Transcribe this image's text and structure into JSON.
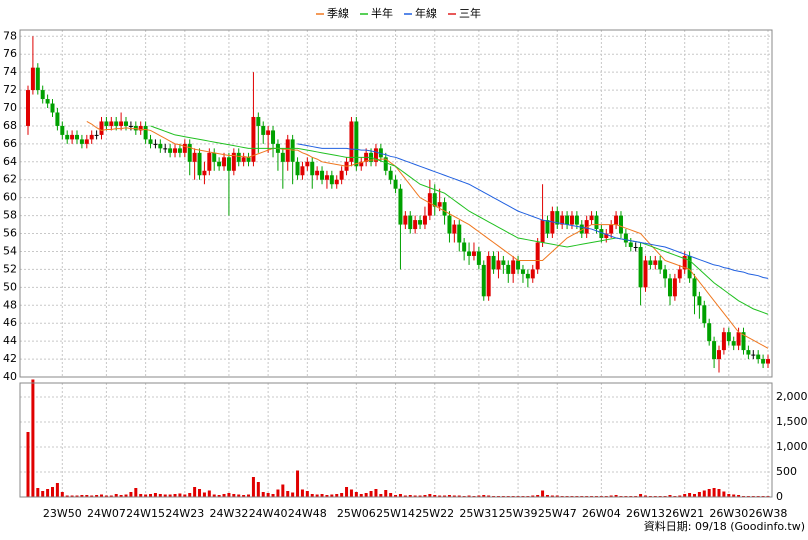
{
  "chart_data": {
    "type": "candlestick",
    "legend": "top",
    "up_color": "#e00000",
    "down_color": "#00a000",
    "flat_color": "#000000",
    "ylim": [
      40,
      78.7
    ],
    "yticks": [
      40,
      42,
      44,
      46,
      48,
      50,
      52,
      54,
      56,
      58,
      60,
      62,
      64,
      66,
      68,
      70,
      72,
      74,
      76,
      78
    ],
    "grid": true,
    "categories": [
      null,
      null,
      null,
      null,
      null,
      null,
      null,
      "23W50",
      null,
      null,
      null,
      null,
      null,
      null,
      null,
      null,
      "24W07",
      null,
      null,
      null,
      null,
      null,
      null,
      null,
      "24W15",
      null,
      null,
      null,
      null,
      null,
      null,
      null,
      "24W23",
      null,
      null,
      null,
      null,
      null,
      null,
      null,
      null,
      "24W32",
      null,
      null,
      null,
      null,
      null,
      null,
      null,
      "24W40",
      null,
      null,
      null,
      null,
      null,
      null,
      null,
      "24W48",
      null,
      null,
      null,
      null,
      null,
      null,
      null,
      null,
      null,
      "25W06",
      null,
      null,
      null,
      null,
      null,
      null,
      null,
      "25W14",
      null,
      null,
      null,
      null,
      null,
      null,
      null,
      "25W22",
      null,
      null,
      null,
      null,
      null,
      null,
      null,
      null,
      "25W31",
      null,
      null,
      null,
      null,
      null,
      null,
      null,
      "25W39",
      null,
      null,
      null,
      null,
      null,
      null,
      null,
      "25W47",
      null,
      null,
      null,
      null,
      null,
      null,
      null,
      null,
      "26W04",
      null,
      null,
      null,
      null,
      null,
      null,
      null,
      null,
      "26W13",
      null,
      null,
      null,
      null,
      null,
      null,
      null,
      "26W21",
      null,
      null,
      null,
      null,
      null,
      null,
      null,
      null,
      "26W30",
      null,
      null,
      null,
      null,
      null,
      null,
      null,
      "26W38"
    ],
    "open": [
      68,
      72,
      74.5,
      72,
      71,
      70.5,
      69.5,
      68,
      67,
      66.5,
      67,
      66.5,
      66,
      66.5,
      67,
      67,
      68.5,
      68,
      68.5,
      68,
      68.5,
      68,
      68,
      67.5,
      68,
      66.5,
      66,
      66,
      65.5,
      65.5,
      65,
      65.5,
      65,
      66,
      64,
      65,
      62.5,
      63,
      65,
      64,
      63.5,
      64.5,
      63,
      65,
      64,
      64.5,
      64,
      69,
      68,
      67,
      67.5,
      66,
      65,
      64,
      66.5,
      64,
      62.5,
      63.5,
      64,
      62.5,
      63,
      62,
      62.5,
      61.5,
      62,
      63,
      64,
      68.5,
      63.5,
      64,
      65,
      64,
      65.5,
      64.5,
      63,
      62,
      61,
      57,
      58,
      56.5,
      57.5,
      57,
      58,
      60.5,
      59,
      59.5,
      58,
      56,
      57,
      55,
      54,
      53.5,
      54,
      52.5,
      49,
      53.5,
      52,
      53,
      52.5,
      51.5,
      53,
      52,
      51.5,
      51,
      52,
      55,
      57.5,
      56,
      58.5,
      57,
      58,
      57,
      58,
      57,
      56,
      57.5,
      58,
      56.5,
      55.5,
      56,
      57,
      58,
      56,
      55,
      54.5,
      54.5,
      50,
      53,
      52.5,
      53,
      52,
      51,
      49,
      51,
      52,
      53.5,
      51,
      49,
      48,
      46,
      44,
      42,
      43,
      45,
      44,
      43.5,
      45,
      43,
      42.5,
      42.5,
      42,
      41.5
    ],
    "high": [
      72.5,
      78,
      75,
      72.5,
      71.5,
      71,
      70,
      68.5,
      67.5,
      67.5,
      67.5,
      67,
      67,
      67.5,
      67.5,
      69,
      69,
      69,
      69,
      69.5,
      69,
      68.5,
      68.5,
      68.5,
      68.5,
      67,
      66.5,
      66.5,
      66,
      66,
      66,
      66,
      66.5,
      66.5,
      65.5,
      65.5,
      64,
      65.5,
      65.5,
      64.5,
      65,
      65,
      65.5,
      65.5,
      65,
      65,
      74,
      69.5,
      68.5,
      68,
      68,
      66.5,
      65.5,
      67,
      67,
      64.5,
      64,
      64.5,
      64.5,
      63.5,
      63.5,
      63,
      63,
      62.5,
      63.5,
      64.5,
      69,
      69,
      64.5,
      65.5,
      65.5,
      66,
      66,
      65,
      63.5,
      62.5,
      61.5,
      58.5,
      58.5,
      58,
      58,
      59,
      62,
      61.5,
      61,
      60,
      58.5,
      57.5,
      57.5,
      55.5,
      55,
      55,
      54.5,
      53,
      54,
      54,
      54,
      53.5,
      53,
      53.5,
      53.5,
      52.5,
      52,
      52.5,
      55.5,
      61.5,
      58,
      59,
      59,
      58.5,
      58.5,
      58.5,
      58.5,
      57.5,
      58,
      58.5,
      58.5,
      57,
      56.5,
      57.5,
      58.5,
      58.5,
      56.5,
      55.5,
      55,
      55,
      53.5,
      53.5,
      53.5,
      53.5,
      52.5,
      51.5,
      51.5,
      52.5,
      54,
      54,
      51.5,
      49.5,
      48.5,
      46.5,
      44.5,
      43.5,
      45.5,
      45.5,
      44.5,
      45.5,
      45.5,
      43.5,
      43,
      43,
      42.5,
      42.5
    ],
    "low": [
      67,
      71.5,
      71.5,
      70.5,
      70,
      69,
      67.5,
      66.5,
      66,
      66,
      66,
      65.5,
      65.5,
      66,
      66.5,
      66.5,
      67.5,
      67.5,
      67.5,
      67.5,
      67.5,
      67.5,
      67,
      67,
      66,
      65.5,
      65.5,
      65,
      65,
      64.5,
      64.5,
      64.5,
      64.5,
      62.5,
      62,
      62,
      61.5,
      62.5,
      63,
      63,
      63,
      58,
      62.5,
      63.5,
      63.5,
      63.5,
      63.5,
      65,
      66,
      65,
      64.5,
      63,
      61,
      63,
      61.5,
      62,
      62,
      63,
      61,
      62,
      61.5,
      61,
      61,
      61,
      61.5,
      62.5,
      63.5,
      63,
      63,
      63.5,
      63.5,
      63.5,
      64,
      62.5,
      61.5,
      60.5,
      52,
      56.5,
      56,
      56,
      56.5,
      56.5,
      57.5,
      58,
      58.5,
      57,
      55,
      55,
      54,
      53,
      52.5,
      53,
      52,
      48.5,
      48.5,
      51.5,
      51,
      51.5,
      50.5,
      50.5,
      51.5,
      50.5,
      50,
      50.5,
      51.5,
      54.5,
      55.5,
      55.5,
      56.5,
      56.5,
      56.5,
      56.5,
      56.5,
      55.5,
      55.5,
      57,
      56,
      55,
      55,
      55.5,
      56.5,
      55.5,
      54.5,
      54,
      54,
      48,
      49.5,
      52,
      52,
      51.5,
      50,
      48,
      48.5,
      50.5,
      51.5,
      50.5,
      47,
      46.5,
      45.5,
      43.5,
      41,
      40.5,
      42.5,
      43.5,
      43,
      43,
      42.5,
      42,
      42,
      41.5,
      41,
      41
    ],
    "close": [
      72,
      74.5,
      72,
      71,
      70.5,
      69.5,
      68,
      67,
      66.5,
      67,
      66.5,
      66,
      66.5,
      67,
      67,
      68.5,
      68,
      68.5,
      68,
      68.5,
      68,
      68,
      67.5,
      68,
      66.5,
      66,
      66,
      65.5,
      65.5,
      65,
      65.5,
      65,
      66,
      64,
      65,
      62.5,
      63,
      65,
      64,
      63.5,
      64.5,
      63,
      65,
      64,
      64.5,
      64,
      69,
      68,
      67,
      67.5,
      66,
      65,
      64,
      66.5,
      64,
      62.5,
      63.5,
      64,
      62.5,
      63,
      62,
      62.5,
      61.5,
      62,
      63,
      64,
      68.5,
      63.5,
      64,
      65,
      64,
      65.5,
      64.5,
      63,
      62,
      61,
      57,
      58,
      56.5,
      57.5,
      57,
      58,
      60.5,
      59,
      59.5,
      58,
      56,
      57,
      55,
      54,
      53.5,
      54,
      52.5,
      49,
      53.5,
      52,
      53,
      52.5,
      51.5,
      53,
      52,
      51.5,
      51,
      52,
      55,
      57.5,
      56,
      58.5,
      57,
      58,
      57,
      58,
      57,
      56,
      57.5,
      58,
      56.5,
      55.5,
      56,
      57,
      58,
      56,
      55,
      54.5,
      54.5,
      50,
      53,
      52.5,
      53,
      52,
      51,
      49,
      51,
      52,
      53.5,
      51,
      49,
      48,
      46,
      44,
      42,
      43,
      45,
      44,
      43.5,
      45,
      43,
      42.5,
      42.5,
      42,
      41.5,
      42
    ],
    "series": [
      {
        "name": "季線",
        "color": "#f07820",
        "values": [
          null,
          null,
          null,
          null,
          null,
          null,
          null,
          null,
          null,
          null,
          null,
          null,
          68.5,
          68.2,
          67.8,
          67.5,
          67.6,
          67.6,
          67.7,
          67.7,
          67.8,
          67.7,
          67.7,
          67.6,
          67.6,
          67.5,
          67.2,
          66.9,
          66.6,
          66.3,
          66,
          65.9,
          65.7,
          65.6,
          65.4,
          65.3,
          65.2,
          65.1,
          65,
          64.9,
          64.8,
          64.7,
          64.7,
          64.6,
          64.6,
          64.5,
          64.7,
          64.9,
          65.1,
          65.3,
          65.5,
          65.5,
          65.4,
          65.4,
          65.3,
          65.3,
          65,
          64.8,
          64.5,
          64.3,
          64,
          63.9,
          63.8,
          63.7,
          63.6,
          63.5,
          63.6,
          63.8,
          63.9,
          64.1,
          64.2,
          64.2,
          64.3,
          64.3,
          63.9,
          63.5,
          62.8,
          62.1,
          61.4,
          60.7,
          60,
          59.7,
          59.4,
          59.1,
          58.8,
          58.5,
          58.2,
          57.9,
          57.6,
          57.3,
          57,
          56.6,
          56.2,
          55.8,
          55.4,
          55,
          54.6,
          54.2,
          53.8,
          53.4,
          53,
          53,
          53,
          53,
          53,
          53,
          53.5,
          54,
          54.5,
          55,
          55.5,
          55.8,
          56.1,
          56.4,
          56.7,
          57,
          57,
          57,
          57,
          57,
          57,
          56.8,
          56.6,
          56.4,
          56.2,
          56,
          55.4,
          54.8,
          54.2,
          53.6,
          53,
          52.8,
          52.6,
          52.4,
          52.2,
          52,
          51.3,
          50.6,
          49.9,
          49.2,
          48.5,
          47.8,
          47.1,
          46.4,
          45.7,
          45,
          44.7,
          44.4,
          44.1,
          43.8,
          43.5,
          43.2
        ]
      },
      {
        "name": "半年",
        "color": "#20c020",
        "values": [
          null,
          null,
          null,
          null,
          null,
          null,
          null,
          null,
          null,
          null,
          null,
          null,
          null,
          null,
          null,
          null,
          null,
          null,
          null,
          null,
          null,
          null,
          null,
          null,
          null,
          68,
          67.8,
          67.6,
          67.4,
          67.2,
          67,
          66.9,
          66.8,
          66.7,
          66.6,
          66.5,
          66.4,
          66.3,
          66.2,
          66.1,
          66,
          65.9,
          65.8,
          65.7,
          65.6,
          65.5,
          65.5,
          65.5,
          65.5,
          65.5,
          65.5,
          65.5,
          65.5,
          65.5,
          65.5,
          65.5,
          65.4,
          65.3,
          65.2,
          65.1,
          65,
          64.9,
          64.8,
          64.7,
          64.6,
          64.5,
          64.5,
          64.5,
          64.5,
          64.5,
          64.5,
          64.3,
          64.1,
          63.9,
          63.7,
          63.5,
          63.1,
          62.7,
          62.3,
          61.9,
          61.5,
          61.3,
          61.1,
          60.9,
          60.7,
          60.5,
          60.1,
          59.7,
          59.3,
          58.9,
          58.5,
          58.2,
          57.9,
          57.6,
          57.3,
          57,
          56.7,
          56.4,
          56.1,
          55.8,
          55.5,
          55.4,
          55.3,
          55.2,
          55.1,
          55,
          54.9,
          54.8,
          54.7,
          54.6,
          54.5,
          54.6,
          54.7,
          54.8,
          54.9,
          55,
          55.1,
          55.2,
          55.3,
          55.4,
          55.5,
          55.4,
          55.3,
          55.2,
          55.1,
          55,
          54.8,
          54.6,
          54.4,
          54.2,
          54,
          53.8,
          53.6,
          53.4,
          53.2,
          53,
          52.5,
          52,
          51.5,
          51,
          50.5,
          50.1,
          49.7,
          49.3,
          48.9,
          48.5,
          48.2,
          47.9,
          47.6,
          47.4,
          47.2,
          47
        ]
      },
      {
        "name": "年線",
        "color": "#2060e0",
        "values": [
          null,
          null,
          null,
          null,
          null,
          null,
          null,
          null,
          null,
          null,
          null,
          null,
          null,
          null,
          null,
          null,
          null,
          null,
          null,
          null,
          null,
          null,
          null,
          null,
          null,
          null,
          null,
          null,
          null,
          null,
          null,
          null,
          null,
          null,
          null,
          null,
          null,
          null,
          null,
          null,
          null,
          null,
          null,
          null,
          null,
          null,
          null,
          null,
          null,
          null,
          null,
          null,
          null,
          null,
          null,
          66,
          65.9,
          65.8,
          65.7,
          65.6,
          65.5,
          65.5,
          65.5,
          65.5,
          65.5,
          65.5,
          65.4,
          65.4,
          65.3,
          65.3,
          65.2,
          65.1,
          64.9,
          64.8,
          64.6,
          64.5,
          64.3,
          64.1,
          63.9,
          63.7,
          63.5,
          63.3,
          63.1,
          62.9,
          62.7,
          62.5,
          62.3,
          62.1,
          61.9,
          61.7,
          61.5,
          61.2,
          60.9,
          60.6,
          60.3,
          60,
          59.7,
          59.4,
          59.1,
          58.8,
          58.5,
          58.3,
          58.1,
          57.9,
          57.7,
          57.5,
          57.4,
          57.3,
          57.2,
          57.1,
          57,
          56.9,
          56.8,
          56.7,
          56.6,
          56.5,
          56.3,
          56.1,
          55.9,
          55.7,
          55.5,
          55.4,
          55.3,
          55.2,
          55.1,
          55,
          54.9,
          54.8,
          54.7,
          54.6,
          54.5,
          54.3,
          54.1,
          53.9,
          53.7,
          53.5,
          53.3,
          53.1,
          52.9,
          52.7,
          52.5,
          52.4,
          52.2,
          52.1,
          51.9,
          51.8,
          51.7,
          51.5,
          51.4,
          51.3,
          51.1,
          51
        ]
      },
      {
        "name": "三年",
        "color": "#e02020"
      }
    ],
    "volume": {
      "type": "bar",
      "color": "#e00000",
      "ylim": [
        0,
        2280
      ],
      "yticks": [
        0,
        500,
        {
          "value": 1000,
          "label": "1,000"
        },
        {
          "value": 1500,
          "label": "1,500"
        },
        {
          "value": 2000,
          "label": "2,000"
        }
      ],
      "values": [
        1300,
        2350,
        180,
        120,
        160,
        200,
        280,
        100,
        30,
        30,
        30,
        40,
        40,
        30,
        40,
        50,
        30,
        30,
        60,
        40,
        50,
        100,
        180,
        60,
        50,
        60,
        80,
        60,
        50,
        50,
        60,
        70,
        50,
        80,
        200,
        160,
        90,
        130,
        50,
        40,
        60,
        80,
        60,
        50,
        40,
        50,
        400,
        300,
        100,
        80,
        60,
        150,
        250,
        120,
        90,
        530,
        150,
        120,
        60,
        50,
        60,
        40,
        50,
        60,
        80,
        200,
        150,
        100,
        60,
        80,
        120,
        160,
        60,
        140,
        80,
        40,
        60,
        30,
        40,
        30,
        30,
        40,
        60,
        40,
        30,
        30,
        40,
        30,
        30,
        20,
        30,
        20,
        30,
        40,
        30,
        20,
        20,
        20,
        20,
        20,
        20,
        20,
        20,
        30,
        40,
        130,
        40,
        30,
        30,
        20,
        20,
        20,
        20,
        20,
        20,
        20,
        20,
        20,
        20,
        30,
        40,
        20,
        20,
        20,
        20,
        60,
        30,
        20,
        20,
        20,
        20,
        40,
        20,
        30,
        60,
        80,
        60,
        100,
        130,
        160,
        180,
        160,
        110,
        60,
        50,
        40,
        20,
        20,
        20,
        20,
        20,
        20
      ]
    },
    "source": "資料日期: 09/18 (Goodinfo.tw)"
  }
}
